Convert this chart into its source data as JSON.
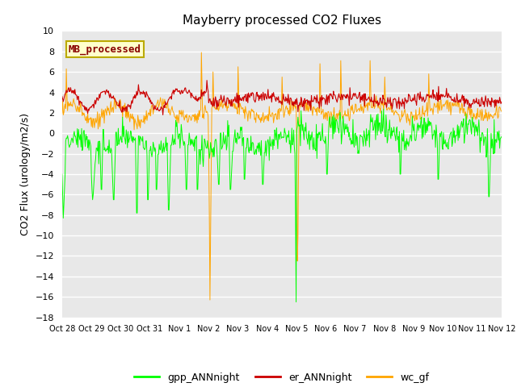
{
  "title": "Mayberry processed CO2 Fluxes",
  "ylabel": "CO2 Flux (urology/m2/s)",
  "ylim": [
    -18,
    10
  ],
  "yticks": [
    -18,
    -16,
    -14,
    -12,
    -10,
    -8,
    -6,
    -4,
    -2,
    0,
    2,
    4,
    6,
    8,
    10
  ],
  "xtick_labels": [
    "Oct 28",
    "Oct 29",
    "Oct 30",
    "Oct 31",
    "Nov 1",
    "Nov 2",
    "Nov 3",
    "Nov 4",
    "Nov 5",
    "Nov 6",
    "Nov 7",
    "Nov 8",
    "Nov 9",
    "Nov 10",
    "Nov 11",
    "Nov 12"
  ],
  "n_days": 15,
  "pts_per_day": 48,
  "colors": {
    "gpp_ANNnight": "#00FF00",
    "er_ANNnight": "#CC0000",
    "wc_gf": "#FFA500"
  },
  "bg_color": "#E8E8E8",
  "legend_box_facecolor": "#FFFFCC",
  "legend_box_edgecolor": "#BBAA00",
  "legend_box_text": "MB_processed",
  "legend_box_text_color": "#880000",
  "title_fontsize": 11,
  "ylabel_fontsize": 9,
  "tick_fontsize": 8,
  "xtick_fontsize": 7,
  "legend_fontsize": 9
}
